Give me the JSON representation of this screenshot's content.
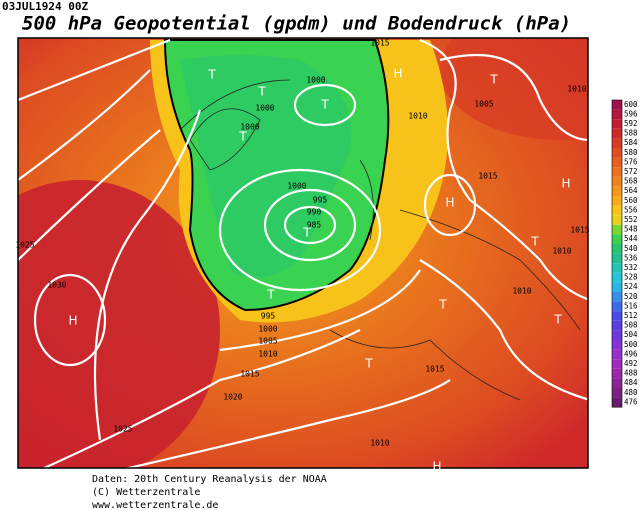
{
  "header": {
    "date": "03JUL1924 00Z",
    "title": "500 hPa Geopotential (gpdm) und Bodendruck (hPa)"
  },
  "colorbar": {
    "labels": [
      600,
      596,
      592,
      588,
      584,
      580,
      576,
      572,
      568,
      564,
      560,
      556,
      552,
      548,
      544,
      540,
      536,
      532,
      528,
      524,
      520,
      516,
      512,
      508,
      504,
      500,
      496,
      492,
      488,
      484,
      480,
      476
    ]
  },
  "map": {
    "isobar_labels": [
      "1015",
      "1000",
      "1000",
      "1000",
      "1010",
      "1005",
      "1010",
      "1015",
      "1000",
      "995",
      "990",
      "985",
      "1015",
      "1010",
      "1025",
      "1030",
      "1010",
      "995",
      "1000",
      "1005",
      "1010",
      "1015",
      "1015",
      "1020",
      "1025",
      "1010"
    ],
    "centers": [
      "T",
      "T",
      "T",
      "T",
      "H",
      "T",
      "H",
      "H",
      "T",
      "T",
      "H",
      "T",
      "T",
      "T",
      "T",
      "H"
    ]
  },
  "footer": {
    "lines": [
      "Daten: 20th Century Reanalysis der NOAA",
      "(C) Wetterzentrale",
      "www.wetterzentrale.de"
    ]
  }
}
